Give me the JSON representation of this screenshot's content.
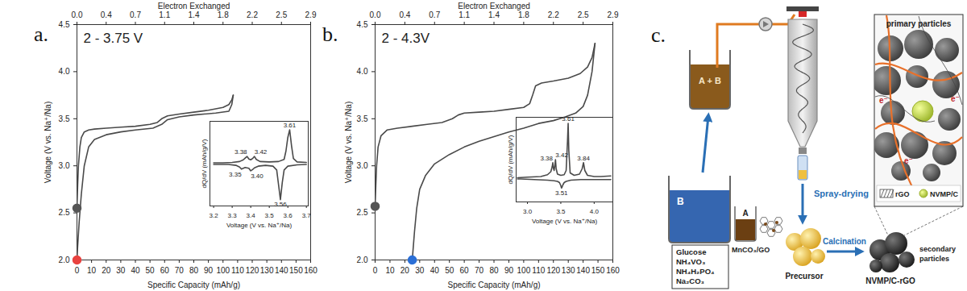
{
  "chart_data": [
    {
      "type": "line",
      "panel_label": "a.",
      "annotation": "2 - 3.75 V",
      "xlabel": "Specific Capacity (mAh/g)",
      "ylabel": "Voltage (V vs. Na⁺/Na)",
      "x2label": "Electron Exchanged",
      "xlim": [
        0,
        160
      ],
      "xticks": [
        0,
        10,
        20,
        30,
        40,
        50,
        60,
        70,
        80,
        90,
        100,
        110,
        120,
        130,
        140,
        150,
        160
      ],
      "ylim": [
        2,
        4.5
      ],
      "yticks": [
        {
          "value": 2,
          "label": "2.0"
        },
        2.5,
        {
          "value": 3,
          "label": "3.0"
        },
        3.5,
        {
          "value": 4,
          "label": "4.0"
        },
        4.5
      ],
      "x2lim": [
        0,
        2.88
      ],
      "x2ticks": [
        {
          "value": 0,
          "label": "0.0"
        },
        {
          "value": 0.36,
          "label": "0.4"
        },
        {
          "value": 0.72,
          "label": "0.7"
        },
        {
          "value": 1.08,
          "label": "1.1"
        },
        {
          "value": 1.44,
          "label": "1.4"
        },
        1.8,
        {
          "value": 2.16,
          "label": "2.2"
        },
        {
          "value": 2.52,
          "label": "2.5"
        },
        {
          "value": 2.88,
          "label": "2.9"
        }
      ],
      "series": [
        {
          "type": "line",
          "color": "#4a4a4a",
          "x": [
            0,
            0.5,
            1,
            2,
            3,
            5,
            8,
            12,
            20,
            30,
            40,
            50,
            55,
            58,
            62,
            70,
            80,
            90,
            100,
            104,
            106,
            107
          ],
          "values": [
            2.55,
            2.8,
            3.0,
            3.2,
            3.3,
            3.36,
            3.38,
            3.39,
            3.4,
            3.41,
            3.42,
            3.44,
            3.46,
            3.5,
            3.53,
            3.55,
            3.57,
            3.59,
            3.62,
            3.65,
            3.7,
            3.75
          ]
        },
        {
          "type": "line",
          "color": "#4a4a4a",
          "x": [
            107,
            106,
            104,
            95,
            80,
            70,
            62,
            58,
            52,
            40,
            30,
            20,
            12,
            8,
            5,
            3,
            1.5,
            0.5,
            0
          ],
          "values": [
            3.75,
            3.65,
            3.58,
            3.56,
            3.54,
            3.52,
            3.49,
            3.44,
            3.4,
            3.38,
            3.36,
            3.33,
            3.28,
            3.2,
            3.0,
            2.7,
            2.4,
            2.15,
            2.0
          ]
        },
        {
          "type": "scatter",
          "marker": "circle",
          "color": "#555555",
          "x": [
            0
          ],
          "values": [
            2.55
          ]
        },
        {
          "type": "scatter",
          "marker": "circle",
          "color": "#e8423f",
          "x": [
            0
          ],
          "values": [
            2.0
          ]
        }
      ],
      "inset": {
        "type": "line",
        "tick_labels": "x",
        "xlabel": "Voltage (V vs. Na⁺/Na)",
        "ylabel": "dQ/dV (mAh/g/V)",
        "xlim": [
          3.18,
          3.71
        ],
        "xticks": [
          3.2,
          3.3,
          3.4,
          3.5,
          3.6,
          3.7
        ],
        "ylim": [
          -1,
          1
        ],
        "series": [
          {
            "type": "line",
            "color": "#4a4a4a",
            "x": [
              3.2,
              3.25,
              3.3,
              3.34,
              3.36,
              3.37,
              3.38,
              3.39,
              3.4,
              3.41,
              3.42,
              3.43,
              3.45,
              3.5,
              3.55,
              3.58,
              3.59,
              3.6,
              3.61,
              3.62,
              3.63,
              3.65,
              3.7
            ],
            "values": [
              0.02,
              0.02,
              0.03,
              0.05,
              0.09,
              0.13,
              0.17,
              0.11,
              0.09,
              0.12,
              0.17,
              0.1,
              0.05,
              0.04,
              0.05,
              0.1,
              0.3,
              0.62,
              0.8,
              0.42,
              0.12,
              0.04,
              0.03
            ],
            "peaks": [
              3.38,
              3.42,
              3.61
            ]
          },
          {
            "type": "line",
            "color": "#4a4a4a",
            "x": [
              3.7,
              3.65,
              3.6,
              3.58,
              3.57,
              3.56,
              3.55,
              3.54,
              3.52,
              3.48,
              3.44,
              3.42,
              3.41,
              3.4,
              3.39,
              3.37,
              3.36,
              3.35,
              3.34,
              3.32,
              3.28,
              3.2
            ],
            "values": [
              -0.02,
              -0.03,
              -0.06,
              -0.15,
              -0.45,
              -0.85,
              -0.5,
              -0.15,
              -0.06,
              -0.04,
              -0.06,
              -0.1,
              -0.14,
              -0.17,
              -0.11,
              -0.09,
              -0.11,
              -0.13,
              -0.08,
              -0.04,
              -0.02,
              -0.02
            ],
            "peaks": [
              3.35,
              {
                "value": 3.4,
                "label": "3.40"
              },
              3.56
            ]
          }
        ]
      }
    },
    {
      "type": "line",
      "panel_label": "b.",
      "annotation": "2 - 4.3V",
      "xlabel": "Specific Capacity (mAh/g)",
      "ylabel": "Voltage (V vs. Na⁺/Na)",
      "x2label": "Electron Exchanged",
      "xlim": [
        0,
        160
      ],
      "xticks": [
        0,
        10,
        20,
        30,
        40,
        50,
        60,
        70,
        80,
        90,
        100,
        110,
        120,
        130,
        140,
        150,
        160
      ],
      "ylim": [
        2,
        4.5
      ],
      "yticks": [
        {
          "value": 2,
          "label": "2.0"
        },
        2.5,
        {
          "value": 3,
          "label": "3.0"
        },
        3.5,
        {
          "value": 4,
          "label": "4.0"
        },
        4.5
      ],
      "x2lim": [
        0,
        2.88
      ],
      "x2ticks": [
        {
          "value": 0,
          "label": "0.0"
        },
        {
          "value": 0.36,
          "label": "0.4"
        },
        {
          "value": 0.72,
          "label": "0.7"
        },
        {
          "value": 1.08,
          "label": "1.1"
        },
        {
          "value": 1.44,
          "label": "1.4"
        },
        1.8,
        {
          "value": 2.16,
          "label": "2.2"
        },
        {
          "value": 2.52,
          "label": "2.5"
        },
        {
          "value": 2.88,
          "label": "2.9"
        }
      ],
      "series": [
        {
          "type": "line",
          "color": "#4a4a4a",
          "x": [
            0,
            0.5,
            1,
            2,
            4,
            8,
            15,
            25,
            35,
            45,
            52,
            56,
            60,
            70,
            80,
            90,
            100,
            104,
            106,
            108,
            112,
            120,
            130,
            138,
            143,
            146,
            148
          ],
          "values": [
            2.57,
            2.8,
            3.0,
            3.2,
            3.32,
            3.38,
            3.4,
            3.42,
            3.44,
            3.46,
            3.5,
            3.54,
            3.56,
            3.57,
            3.58,
            3.6,
            3.62,
            3.66,
            3.75,
            3.85,
            3.88,
            3.9,
            3.93,
            3.98,
            4.05,
            4.15,
            4.3
          ]
        },
        {
          "type": "line",
          "color": "#4a4a4a",
          "x": [
            148,
            146,
            143,
            140,
            135,
            128,
            120,
            110,
            100,
            90,
            80,
            70,
            60,
            50,
            40,
            34,
            30,
            28,
            26.5,
            25.5,
            25
          ],
          "values": [
            4.3,
            4.0,
            3.75,
            3.63,
            3.56,
            3.52,
            3.48,
            3.45,
            3.4,
            3.36,
            3.31,
            3.26,
            3.2,
            3.12,
            3.02,
            2.9,
            2.75,
            2.55,
            2.3,
            2.1,
            2.0
          ]
        },
        {
          "type": "scatter",
          "marker": "circle",
          "color": "#555555",
          "x": [
            0
          ],
          "values": [
            2.57
          ]
        },
        {
          "type": "scatter",
          "marker": "circle",
          "color": "#2b6fd6",
          "x": [
            25
          ],
          "values": [
            2.0
          ]
        }
      ],
      "inset": {
        "type": "line",
        "tick_labels": "x",
        "xlabel": "Voltage (V vs. Na⁺/Na)",
        "ylabel": "dQ/dV (mAh/g/V)",
        "xlim": [
          2.83,
          4.28
        ],
        "xticks": [
          {
            "value": 3,
            "label": "3.0"
          },
          3.5,
          {
            "value": 4,
            "label": "4.0"
          }
        ],
        "ylim": [
          -0.4,
          1.0
        ],
        "series": [
          {
            "type": "line",
            "color": "#4a4a4a",
            "x": [
              2.85,
              3.0,
              3.2,
              3.3,
              3.35,
              3.37,
              3.38,
              3.39,
              3.4,
              3.41,
              3.42,
              3.43,
              3.45,
              3.5,
              3.55,
              3.58,
              3.6,
              3.61,
              3.62,
              3.64,
              3.7,
              3.78,
              3.82,
              3.84,
              3.86,
              3.9,
              4.0,
              4.1,
              4.25
            ],
            "values": [
              0,
              0.01,
              0.02,
              0.05,
              0.1,
              0.18,
              0.25,
              0.15,
              0.12,
              0.2,
              0.3,
              0.15,
              0.06,
              0.04,
              0.05,
              0.12,
              0.6,
              0.9,
              0.45,
              0.08,
              0.04,
              0.06,
              0.15,
              0.25,
              0.12,
              0.04,
              0.02,
              0.02,
              0.03
            ],
            "peaks": [
              3.38,
              3.42,
              3.61,
              3.84
            ]
          },
          {
            "type": "line",
            "color": "#4a4a4a",
            "x": [
              4.25,
              4.0,
              3.8,
              3.65,
              3.58,
              3.55,
              3.53,
              3.52,
              3.51,
              3.5,
              3.48,
              3.45,
              3.4,
              3.3,
              3.1,
              2.9,
              2.85
            ],
            "values": [
              -0.03,
              -0.03,
              -0.03,
              -0.04,
              -0.06,
              -0.08,
              -0.12,
              -0.15,
              -0.17,
              -0.13,
              -0.08,
              -0.06,
              -0.05,
              -0.04,
              -0.03,
              -0.02,
              -0.02
            ],
            "peaks": [
              3.51
            ]
          }
        ]
      }
    }
  ],
  "diagram": {
    "panel_label": "c.",
    "beaker_B": "B",
    "reagents": [
      "Glucose",
      "NH₄VO₃",
      "NH₄H₂PO₄",
      "Na₂CO₃"
    ],
    "beaker_A": "A",
    "mn_source": "MnCO₃/GO",
    "mix": "A + B",
    "spray_drying": "Spray-drying",
    "precursor": "Precursor",
    "calcination": "Calcination",
    "product": "NVMP/C-rGO",
    "primary": "primary particles",
    "secondary": "secondary particles",
    "legend": [
      "rGO",
      "NVMP/C"
    ],
    "electron": "e⁻"
  }
}
